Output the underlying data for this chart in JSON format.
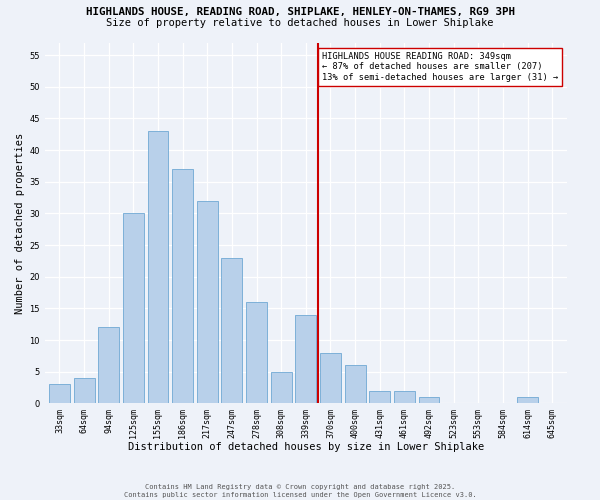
{
  "title1": "HIGHLANDS HOUSE, READING ROAD, SHIPLAKE, HENLEY-ON-THAMES, RG9 3PH",
  "title2": "Size of property relative to detached houses in Lower Shiplake",
  "xlabel": "Distribution of detached houses by size in Lower Shiplake",
  "ylabel": "Number of detached properties",
  "categories": [
    "33sqm",
    "64sqm",
    "94sqm",
    "125sqm",
    "155sqm",
    "186sqm",
    "217sqm",
    "247sqm",
    "278sqm",
    "308sqm",
    "339sqm",
    "370sqm",
    "400sqm",
    "431sqm",
    "461sqm",
    "492sqm",
    "523sqm",
    "553sqm",
    "584sqm",
    "614sqm",
    "645sqm"
  ],
  "values": [
    3,
    4,
    12,
    30,
    43,
    37,
    32,
    23,
    16,
    5,
    14,
    8,
    6,
    2,
    2,
    1,
    0,
    0,
    0,
    1,
    0
  ],
  "bar_color": "#b8d0ea",
  "bar_edge_color": "#6fa8d4",
  "marker_color": "#cc0000",
  "marker_label": "HIGHLANDS HOUSE READING ROAD: 349sqm\n← 87% of detached houses are smaller (207)\n13% of semi-detached houses are larger (31) →",
  "ylim": [
    0,
    57
  ],
  "yticks": [
    0,
    5,
    10,
    15,
    20,
    25,
    30,
    35,
    40,
    45,
    50,
    55
  ],
  "footer1": "Contains HM Land Registry data © Crown copyright and database right 2025.",
  "footer2": "Contains public sector information licensed under the Open Government Licence v3.0.",
  "bg_color": "#eef2f9",
  "grid_color": "#ffffff",
  "title_fontsize": 7.8,
  "subtitle_fontsize": 7.5,
  "tick_fontsize": 6.0,
  "xlabel_fontsize": 7.5,
  "ylabel_fontsize": 7.5,
  "footer_fontsize": 5.0,
  "annot_fontsize": 6.2
}
